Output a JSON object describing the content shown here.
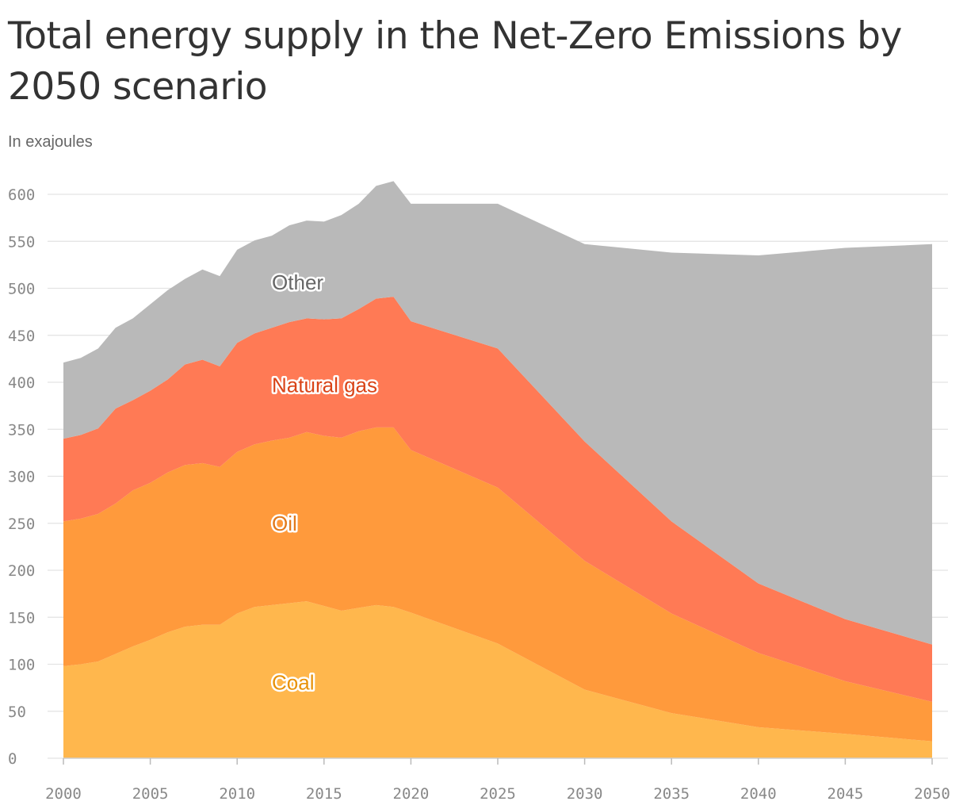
{
  "title": "Total energy supply in the Net-Zero Emissions by 2050 scenario",
  "subtitle": "In exajoules",
  "chart_data": {
    "type": "area",
    "stacked": true,
    "x": [
      2000,
      2001,
      2002,
      2003,
      2004,
      2005,
      2006,
      2007,
      2008,
      2009,
      2010,
      2011,
      2012,
      2013,
      2014,
      2015,
      2016,
      2017,
      2018,
      2019,
      2020,
      2025,
      2030,
      2035,
      2040,
      2045,
      2050
    ],
    "series": [
      {
        "name": "Coal",
        "color": "#ffb74d",
        "label_color": "#e8920a",
        "values": [
          98,
          100,
          103,
          111,
          119,
          126,
          134,
          140,
          142,
          142,
          154,
          161,
          163,
          165,
          167,
          162,
          157,
          160,
          163,
          161,
          155,
          122,
          73,
          48,
          33,
          26,
          18
        ]
      },
      {
        "name": "Oil",
        "color": "#ff9a3c",
        "label_color": "#e27a1c",
        "values": [
          154,
          155,
          157,
          160,
          166,
          167,
          170,
          172,
          172,
          168,
          172,
          173,
          175,
          176,
          180,
          181,
          184,
          188,
          189,
          191,
          173,
          166,
          137,
          106,
          79,
          56,
          42
        ]
      },
      {
        "name": "Natural gas",
        "color": "#ff7a55",
        "label_color": "#d94418",
        "values": [
          88,
          89,
          91,
          101,
          96,
          98,
          99,
          107,
          110,
          107,
          116,
          118,
          120,
          123,
          121,
          124,
          127,
          130,
          137,
          139,
          137,
          148,
          127,
          98,
          74,
          66,
          61
        ]
      },
      {
        "name": "Other",
        "color": "#b9b9b9",
        "label_color": "#666666",
        "values": [
          81,
          82,
          85,
          86,
          87,
          92,
          95,
          91,
          96,
          96,
          99,
          99,
          98,
          103,
          104,
          104,
          110,
          112,
          120,
          123,
          125,
          154,
          210,
          286,
          349,
          395,
          426
        ]
      }
    ],
    "xlim": [
      2000,
      2050
    ],
    "ylim": [
      0,
      600
    ],
    "x_ticks": [
      2000,
      2005,
      2010,
      2015,
      2020,
      2025,
      2030,
      2035,
      2040,
      2045,
      2050
    ],
    "y_ticks": [
      0,
      50,
      100,
      150,
      200,
      250,
      300,
      350,
      400,
      450,
      500,
      550,
      600
    ],
    "grid": true,
    "legend": "inline"
  }
}
